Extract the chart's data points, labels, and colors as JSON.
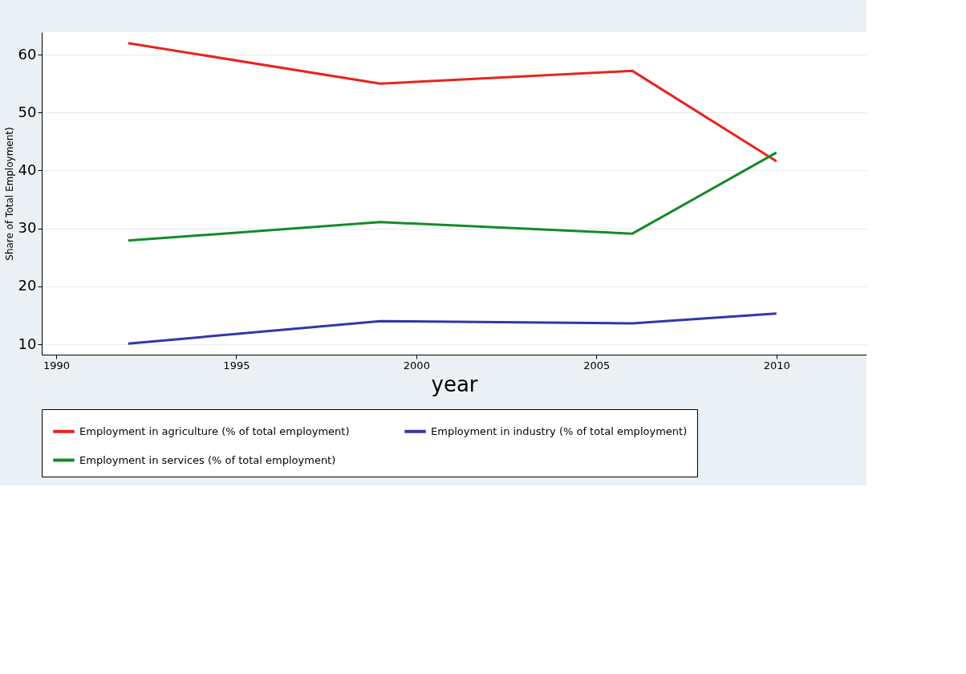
{
  "chart_data": {
    "type": "line",
    "xlabel": "year",
    "ylabel": "Share of Total Employment)",
    "x": [
      1992,
      1999,
      2006,
      2010
    ],
    "series": [
      {
        "name": "Employment in agriculture (% of total employment)",
        "color": "#e8241d",
        "values": [
          62.0,
          55.0,
          57.2,
          41.6
        ]
      },
      {
        "name": "Employment in industry (% of total employment)",
        "color": "#3436a8",
        "values": [
          10.1,
          14.0,
          13.6,
          15.3
        ]
      },
      {
        "name": "Employment in services (% of total employment)",
        "color": "#168a2a",
        "values": [
          27.9,
          31.1,
          29.1,
          43.1
        ]
      }
    ],
    "xlim": [
      1989.6,
      2012.5
    ],
    "xticks": [
      1990,
      1995,
      2000,
      2005,
      2010
    ],
    "ylim": [
      8.2,
      63.9
    ],
    "yticks": [
      10,
      20,
      30,
      40,
      50,
      60
    ],
    "grid": "y",
    "legend": "bottom",
    "marker": "none",
    "line_style": "solid"
  }
}
